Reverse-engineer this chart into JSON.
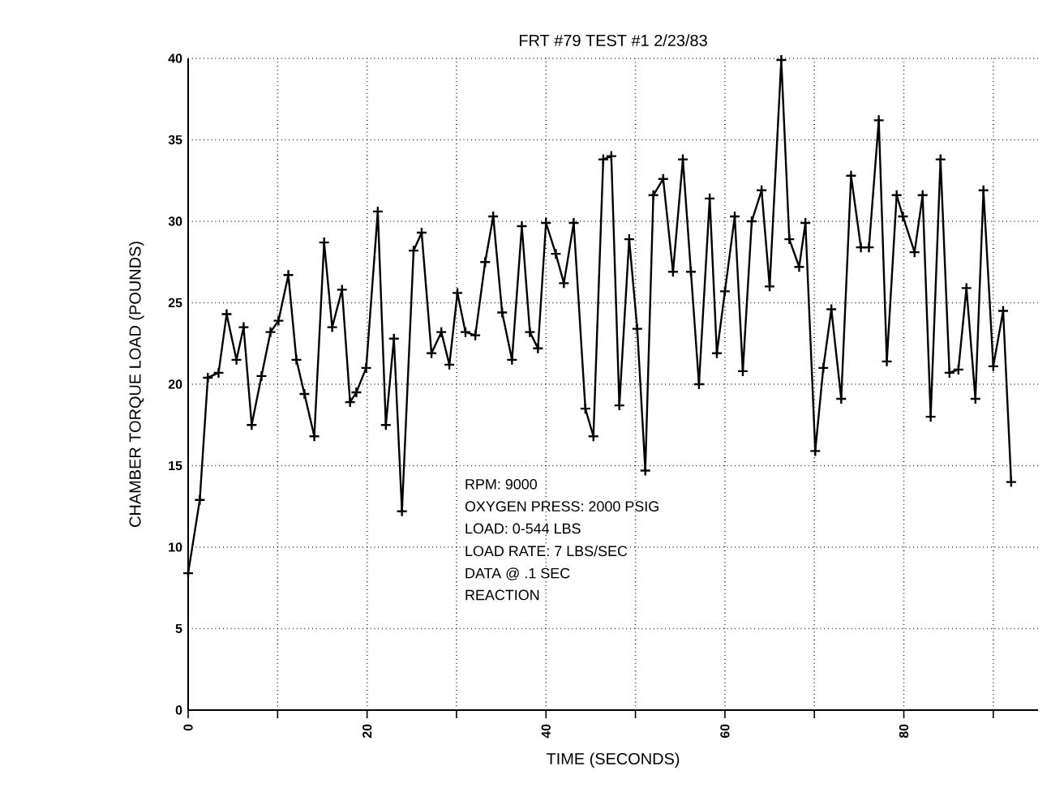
{
  "chart_data": {
    "type": "line",
    "title": "FRT #79 TEST #1 2/23/83",
    "xlabel": "TIME (SECONDS)",
    "ylabel": "CHAMBER TORQUE LOAD (POUNDS)",
    "annotations": [
      "RPM: 9000",
      "OXYGEN PRESS: 2000 PSIG",
      "LOAD: 0-544 LBS",
      "LOAD RATE: 7 LBS/SEC",
      "DATA @ .1 SEC",
      "REACTION"
    ],
    "x": [
      0,
      1.3,
      2.2,
      3.4,
      4.3,
      5.4,
      6.2,
      7.1,
      8.2,
      9.2,
      10.1,
      11.2,
      12.1,
      13.0,
      14.1,
      15.2,
      16.1,
      17.2,
      18.1,
      18.8,
      19.9,
      21.2,
      22.1,
      23.0,
      23.9,
      25.2,
      26.1,
      27.2,
      28.3,
      29.2,
      30.1,
      31.0,
      32.1,
      33.2,
      34.1,
      35.1,
      36.2,
      37.3,
      38.2,
      39.1,
      40.0,
      41.1,
      42.0,
      43.1,
      44.4,
      45.3,
      46.4,
      47.3,
      48.2,
      49.3,
      50.2,
      51.1,
      52.0,
      53.1,
      54.2,
      55.3,
      56.2,
      57.1,
      58.3,
      59.1,
      60.0,
      61.1,
      62.0,
      63.0,
      64.1,
      65.0,
      66.3,
      67.2,
      68.3,
      69.0,
      70.1,
      71.0,
      71.9,
      73.0,
      74.1,
      75.2,
      76.1,
      77.2,
      78.1,
      79.2,
      79.9,
      81.2,
      82.1,
      83.0,
      84.1,
      85.1,
      86.1,
      87.0,
      88.0,
      88.9,
      90.0,
      91.1,
      92.0
    ],
    "values": [
      8.4,
      12.9,
      20.4,
      20.7,
      24.3,
      21.5,
      23.5,
      17.5,
      20.5,
      23.2,
      23.9,
      26.7,
      21.5,
      19.4,
      16.8,
      28.7,
      23.5,
      25.8,
      18.9,
      19.5,
      21.0,
      30.6,
      17.5,
      22.8,
      12.2,
      28.2,
      29.3,
      21.9,
      23.2,
      21.2,
      25.6,
      23.2,
      23.0,
      27.5,
      30.3,
      24.4,
      21.5,
      29.7,
      23.2,
      22.2,
      29.9,
      28.0,
      26.2,
      29.9,
      18.5,
      16.8,
      33.8,
      34.0,
      18.7,
      28.9,
      23.4,
      14.7,
      31.6,
      32.6,
      26.9,
      33.8,
      26.9,
      20.0,
      31.4,
      21.9,
      25.7,
      30.3,
      20.8,
      30.0,
      31.9,
      26.0,
      39.9,
      28.9,
      27.2,
      29.9,
      15.9,
      21.0,
      24.6,
      19.1,
      32.8,
      28.4,
      28.4,
      36.2,
      21.4,
      31.6,
      30.3,
      28.1,
      31.6,
      18.0,
      33.8,
      20.7,
      20.9,
      25.9,
      19.1,
      31.9,
      21.1,
      24.5,
      14.0
    ],
    "color": "#000000",
    "marker": "cross",
    "line_style": "solid",
    "grid": true,
    "xlim": [
      0,
      95
    ],
    "ylim": [
      0,
      40
    ],
    "xticks": [
      0,
      {
        "value": 10,
        "label": null
      },
      20,
      {
        "value": 30,
        "label": null
      },
      40,
      {
        "value": 50,
        "label": null
      },
      60,
      {
        "value": 70,
        "label": null
      },
      80,
      {
        "value": 90,
        "label": null
      }
    ],
    "yticks": [
      0,
      5,
      10,
      15,
      20,
      25,
      30,
      35,
      40
    ]
  }
}
